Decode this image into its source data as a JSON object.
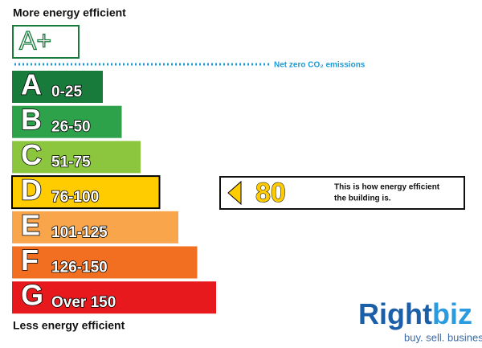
{
  "header": {
    "top_label": "More energy efficient",
    "top_rating": "A+",
    "net_zero": "Net zero CO₂ emissions"
  },
  "bands": [
    {
      "letter": "A",
      "range": "0-25",
      "color": "#187a3b"
    },
    {
      "letter": "B",
      "range": "26-50",
      "color": "#2ea24b"
    },
    {
      "letter": "C",
      "range": "51-75",
      "color": "#8cc63f"
    },
    {
      "letter": "D",
      "range": "76-100",
      "color": "#ffcc00"
    },
    {
      "letter": "E",
      "range": "101-125",
      "color": "#f8a54c"
    },
    {
      "letter": "F",
      "range": "126-150",
      "color": "#f26f21"
    },
    {
      "letter": "G",
      "range": "Over 150",
      "color": "#e8191d"
    }
  ],
  "rating": {
    "value": "80",
    "band_index": 3,
    "text_lines": [
      "This is how energy efficient",
      "the building is."
    ]
  },
  "footer": {
    "bottom_label": "Less energy efficient"
  },
  "logo": {
    "brand_left": "Right",
    "brand_right": "biz",
    "tagline": "buy. sell. business"
  }
}
